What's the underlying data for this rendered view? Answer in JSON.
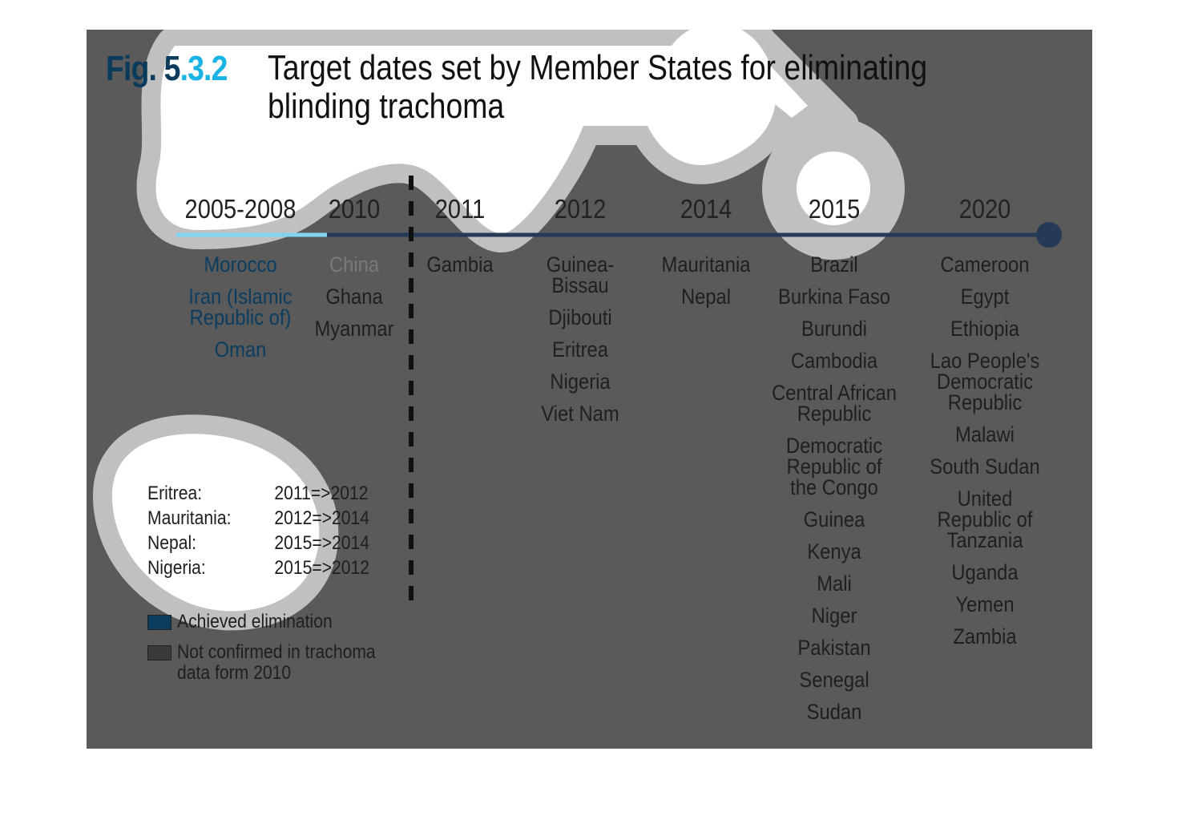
{
  "figure": {
    "number_prefix": "Fig. 5",
    "number_highlight": ".3.2",
    "title_line1": "Target dates set by Member States for eliminating",
    "title_line2": "blinding trachoma"
  },
  "timeline": {
    "years": [
      "2005-2008",
      "2010",
      "2011",
      "2012",
      "2014",
      "2015",
      "2020"
    ],
    "columns": [
      {
        "year": "2005-2008",
        "status": "Achieved elimination",
        "countries": [
          "Morocco",
          "Iran (Islamic Republic of)",
          "Oman"
        ]
      },
      {
        "year": "2010",
        "not_confirmed": [
          "China"
        ],
        "countries": [
          "Ghana",
          "Myanmar"
        ]
      },
      {
        "year": "2011",
        "countries": [
          "Gambia"
        ]
      },
      {
        "year": "2012",
        "countries": [
          "Guinea-Bissau",
          "Djibouti",
          "Eritrea",
          "Nigeria",
          "Viet Nam"
        ]
      },
      {
        "year": "2014",
        "countries": [
          "Mauritania",
          "Nepal"
        ]
      },
      {
        "year": "2015",
        "countries": [
          "Brazil",
          "Burkina Faso",
          "Burundi",
          "Cambodia",
          "Central African Republic",
          "Democratic Republic of the Congo",
          "Guinea",
          "Kenya",
          "Mali",
          "Niger",
          "Pakistan",
          "Senegal",
          "Sudan"
        ]
      },
      {
        "year": "2020",
        "countries": [
          "Cameroon",
          "Egypt",
          "Ethiopia",
          "Lao People's Democratic Republic",
          "Malawi",
          "South Sudan",
          "United Republic of Tanzania",
          "Uganda",
          "Yemen",
          "Zambia"
        ]
      }
    ]
  },
  "changes": [
    {
      "country": "Eritrea:",
      "change": "2011=>2012"
    },
    {
      "country": "Mauritania:",
      "change": "2012=>2014"
    },
    {
      "country": "Nepal:",
      "change": "2015=>2014"
    },
    {
      "country": "Nigeria:",
      "change": "2015=>2012"
    }
  ],
  "legend": [
    {
      "label": "Achieved elimination",
      "color": "#0b3d60"
    },
    {
      "label": "Not confirmed in trachoma data form 2010",
      "color": "#3a3a3a"
    }
  ],
  "colors": {
    "background": "#5a5a5a",
    "highlight": "#ffffff",
    "halo": "#c0c0c0",
    "timeline": "#243a56",
    "achieved_line": "#7fd4f0",
    "figure_number": "#0a3a5c",
    "figure_number_accent": "#19b3e6"
  }
}
